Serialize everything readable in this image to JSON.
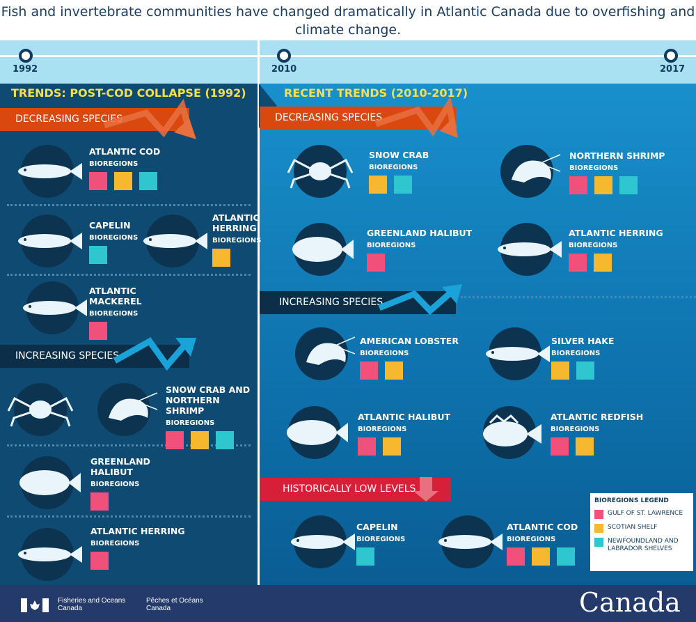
{
  "title": "Fish and invertebrate communities have changed dramatically in Atlantic Canada due to overfishing and climate change.",
  "timeline": {
    "years": [
      "1992",
      "2010",
      "2017"
    ]
  },
  "colors": {
    "gulf": "#f0517a",
    "scotian": "#f5b82e",
    "newfoundland": "#2ec6cf",
    "decreasing": "#d9480f",
    "increasing": "#0c2e48",
    "low": "#d71f3a"
  },
  "bioregions_label": "BIOREGIONS",
  "left": {
    "title": "TRENDS: POST-COD COLLAPSE (1992)",
    "decreasing_label": "DECREASING SPECIES",
    "increasing_label": "INCREASING SPECIES",
    "decreasing": [
      {
        "name": "ATLANTIC COD",
        "icon": "cod-icon",
        "bioregions": [
          "gulf",
          "scotian",
          "newfoundland"
        ]
      },
      {
        "name": "CAPELIN",
        "icon": "capelin-icon",
        "bioregions": [
          "newfoundland"
        ]
      },
      {
        "name": "ATLANTIC HERRING",
        "icon": "herring-icon",
        "bioregions": [
          "scotian"
        ]
      },
      {
        "name": "ATLANTIC MACKEREL",
        "icon": "mackerel-icon",
        "bioregions": [
          "gulf"
        ]
      }
    ],
    "increasing": [
      {
        "name": "SNOW CRAB AND NORTHERN SHRIMP",
        "icon": "crab-shrimp-icon",
        "bioregions": [
          "gulf",
          "scotian",
          "newfoundland"
        ]
      },
      {
        "name": "GREENLAND HALIBUT",
        "icon": "halibut-icon",
        "bioregions": [
          "gulf"
        ]
      },
      {
        "name": "ATLANTIC HERRING",
        "icon": "herring-icon",
        "bioregions": [
          "gulf"
        ]
      }
    ]
  },
  "right": {
    "title": "RECENT TRENDS (2010-2017)",
    "decreasing_label": "DECREASING SPECIES",
    "increasing_label": "INCREASING SPECIES",
    "low_label": "HISTORICALLY LOW LEVELS",
    "decreasing": [
      {
        "name": "SNOW CRAB",
        "icon": "crab-icon",
        "bioregions": [
          "scotian",
          "newfoundland"
        ]
      },
      {
        "name": "NORTHERN SHRIMP",
        "icon": "shrimp-icon",
        "bioregions": [
          "gulf",
          "scotian",
          "newfoundland"
        ]
      },
      {
        "name": "GREENLAND HALIBUT",
        "icon": "halibut-icon",
        "bioregions": [
          "gulf"
        ]
      },
      {
        "name": "ATLANTIC HERRING",
        "icon": "herring-icon",
        "bioregions": [
          "gulf",
          "scotian"
        ]
      }
    ],
    "increasing": [
      {
        "name": "AMERICAN LOBSTER",
        "icon": "lobster-icon",
        "bioregions": [
          "gulf",
          "scotian"
        ]
      },
      {
        "name": "SILVER HAKE",
        "icon": "hake-icon",
        "bioregions": [
          "scotian",
          "newfoundland"
        ]
      },
      {
        "name": "ATLANTIC HALIBUT",
        "icon": "halibut-icon",
        "bioregions": [
          "gulf",
          "scotian"
        ]
      },
      {
        "name": "ATLANTIC REDFISH",
        "icon": "redfish-icon",
        "bioregions": [
          "gulf",
          "scotian"
        ]
      }
    ],
    "low": [
      {
        "name": "CAPELIN",
        "icon": "capelin-icon",
        "bioregions": [
          "newfoundland"
        ]
      },
      {
        "name": "ATLANTIC COD",
        "icon": "cod-icon",
        "bioregions": [
          "gulf",
          "scotian",
          "newfoundland"
        ]
      }
    ]
  },
  "legend": {
    "title": "BIOREGIONS LEGEND",
    "items": [
      {
        "key": "gulf",
        "label": "GULF OF ST. LAWRENCE"
      },
      {
        "key": "scotian",
        "label": "SCOTIAN SHELF"
      },
      {
        "key": "newfoundland",
        "label": "NEWFOUNDLAND AND LABRADOR SHELVES"
      }
    ]
  },
  "footer": {
    "en": "Fisheries and Oceans Canada",
    "fr": "Pêches et Océans Canada",
    "wordmark": "Canada"
  }
}
